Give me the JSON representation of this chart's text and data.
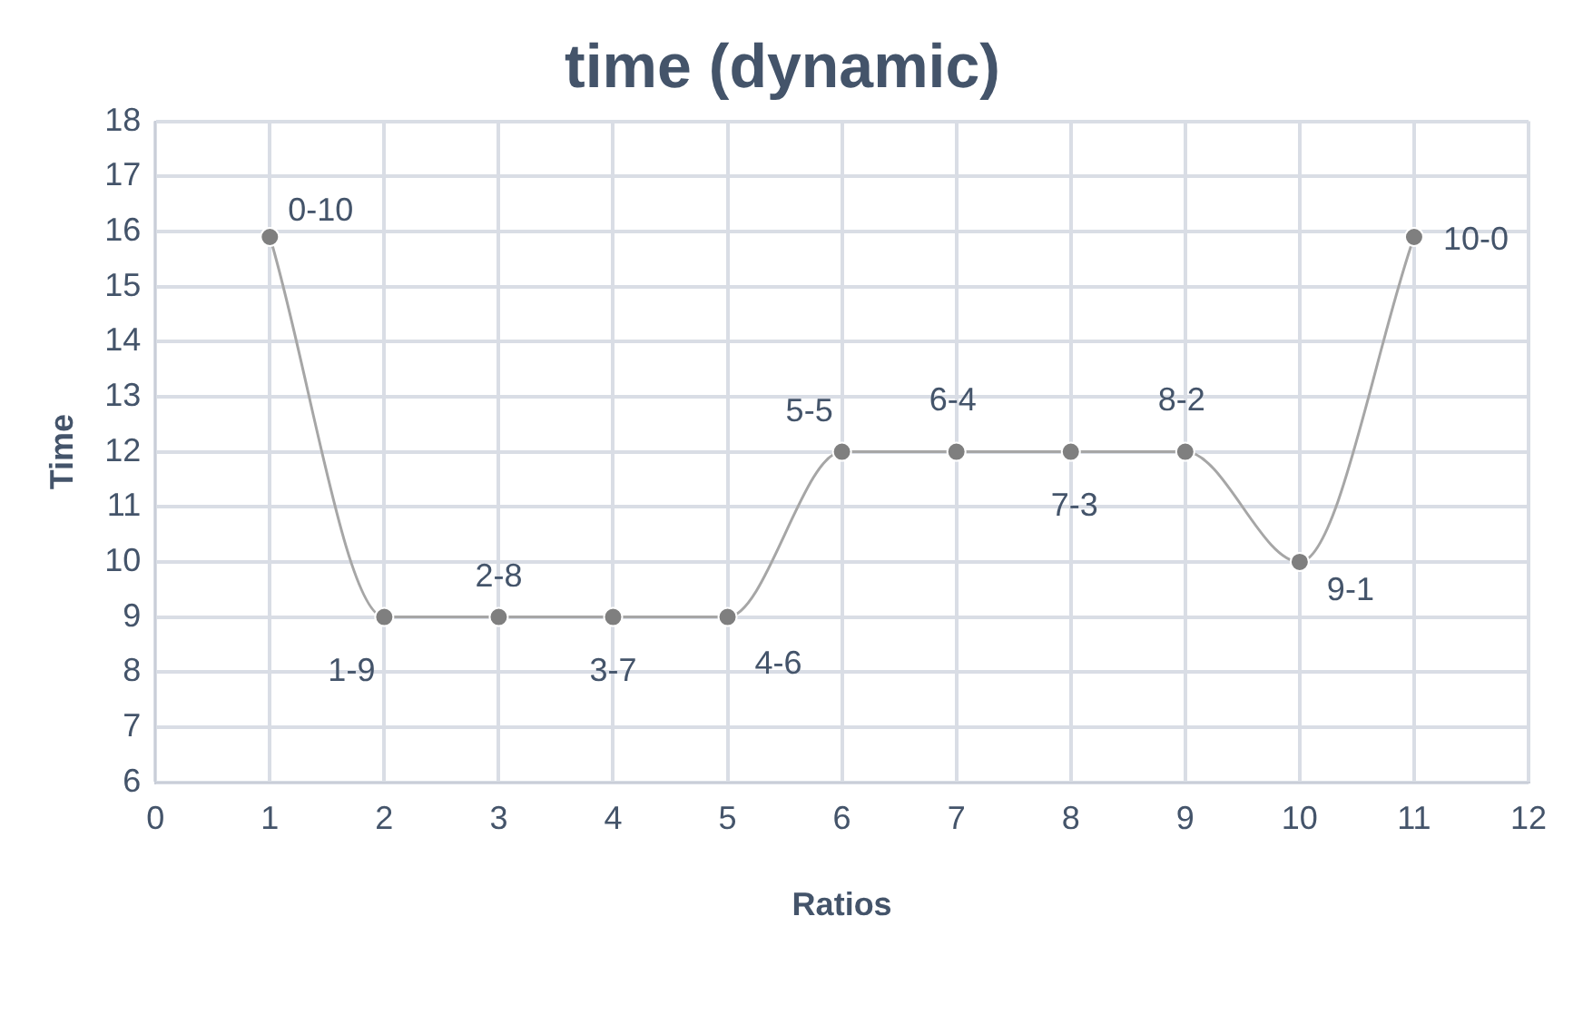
{
  "chart_data": {
    "type": "line",
    "title": "time (dynamic)",
    "xlabel": "Ratios",
    "ylabel": "Time",
    "x": [
      1,
      2,
      3,
      4,
      5,
      6,
      7,
      8,
      9,
      10,
      11
    ],
    "series": [
      {
        "color": "#7f7f7f",
        "values": [
          15.9,
          9,
          9,
          9,
          9,
          12,
          12,
          12,
          12,
          10,
          15.9
        ]
      }
    ],
    "xlim": [
      0,
      12
    ],
    "xticks": [
      0,
      1,
      2,
      3,
      4,
      5,
      6,
      7,
      8,
      9,
      10,
      11,
      12
    ],
    "ylim": [
      6,
      18
    ],
    "yticks": [
      6,
      7,
      8,
      9,
      10,
      11,
      12,
      13,
      14,
      15,
      16,
      17,
      18
    ],
    "grid": true,
    "legend": false,
    "marker": "circle",
    "line_style": "solid",
    "annotations": [
      {
        "text": "0-10",
        "x": 1,
        "y": 15.9
      },
      {
        "text": "1-9",
        "x": 2,
        "y": 9
      },
      {
        "text": "2-8",
        "x": 3,
        "y": 9
      },
      {
        "text": "3-7",
        "x": 4,
        "y": 9
      },
      {
        "text": "4-6",
        "x": 5,
        "y": 9
      },
      {
        "text": "5-5",
        "x": 6,
        "y": 12
      },
      {
        "text": "6-4",
        "x": 7,
        "y": 12
      },
      {
        "text": "7-3",
        "x": 8,
        "y": 12
      },
      {
        "text": "8-2",
        "x": 9,
        "y": 12
      },
      {
        "text": "9-1",
        "x": 10,
        "y": 10
      },
      {
        "text": "10-0",
        "x": 11,
        "y": 15.9
      }
    ]
  }
}
